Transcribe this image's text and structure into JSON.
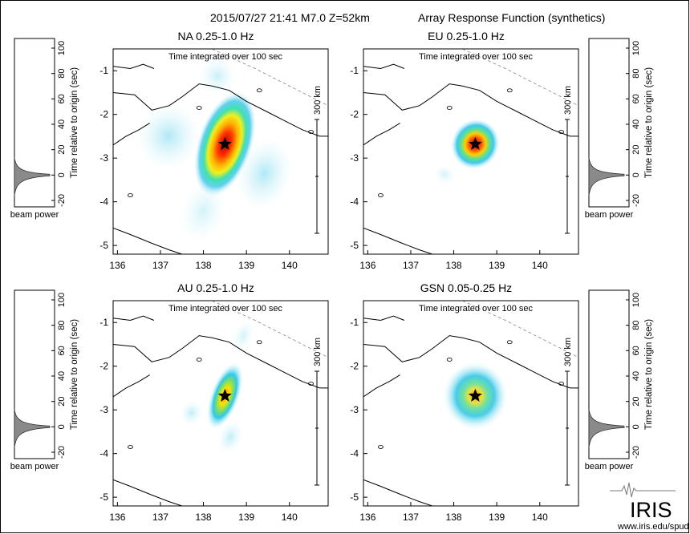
{
  "header": {
    "event": "2015/07/27 21:41  M7.0  Z=52km",
    "title": "Array Response Function (synthetics)"
  },
  "integration_note": "Time integrated over 100 sec",
  "scale_label": "300 km",
  "beam_axis_label": "Time relative to origin (sec)",
  "beam_caption": "beam power",
  "beam_ticks": [
    "100",
    "80",
    "60",
    "40",
    "20",
    "0",
    "-20"
  ],
  "lon_ticks": [
    "136",
    "137",
    "138",
    "139",
    "140"
  ],
  "lat_ticks": [
    "-1",
    "-2",
    "-3",
    "-4",
    "-5"
  ],
  "panels": [
    {
      "id": "na",
      "label": "NA  0.25-1.0 Hz"
    },
    {
      "id": "eu",
      "label": "EU  0.25-1.0 Hz"
    },
    {
      "id": "au",
      "label": "AU  0.25-1.0 Hz"
    },
    {
      "id": "gsn",
      "label": "GSN  0.05-0.25 Hz"
    }
  ],
  "logo": {
    "text": "IRIS",
    "url": "www.iris.edu/spud"
  },
  "colors": {
    "frame": "#000000",
    "beam_fill": "#8a8a8a",
    "coast": "#000000",
    "glow_low": "#bff0f8",
    "glow_mid": "#38c8e8",
    "glow_core": "#e02010"
  }
}
